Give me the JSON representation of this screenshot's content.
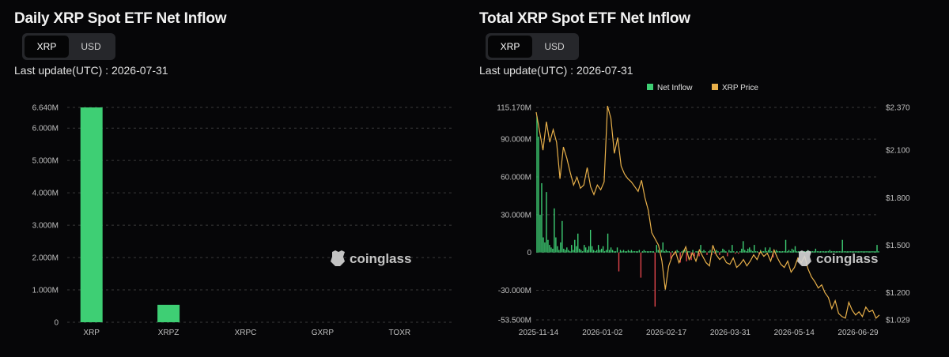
{
  "left": {
    "title": "Daily XRP Spot ETF Net Inflow",
    "toggle": [
      "XRP",
      "USD"
    ],
    "last_update": "Last update(UTC) : 2026-07-31"
  },
  "right": {
    "title": "Total XRP Spot ETF Net Inflow",
    "toggle": [
      "XRP",
      "USD"
    ],
    "last_update": "Last update(UTC) : 2026-07-31"
  },
  "watermark": "coinglass",
  "colors": {
    "inflow": "#3ecf74",
    "outflow": "#e2454b",
    "price": "#e8b04a",
    "grid": "#3a3a3a"
  },
  "chart_data": [
    {
      "type": "bar",
      "categories": [
        "XRP",
        "XRPZ",
        "XRPC",
        "GXRP",
        "TOXR"
      ],
      "values": [
        6640000,
        540000,
        0,
        0,
        0
      ],
      "ylim": [
        0,
        6640000
      ],
      "y_ticks": [
        "0",
        "1.000M",
        "2.000M",
        "3.000M",
        "4.000M",
        "5.000M",
        "6.000M",
        "6.640M"
      ],
      "grid": true
    },
    {
      "type": "bar+line",
      "legend": [
        "Net Inflow",
        "XRP Price"
      ],
      "legend_position": "top-center",
      "ylim": [
        -53500000,
        115170000
      ],
      "y_ticks": [
        "-53.500M",
        "-30.000M",
        "0",
        "30.000M",
        "60.000M",
        "90.000M",
        "115.170M"
      ],
      "y2lim": [
        1.029,
        2.37
      ],
      "y2_ticks": [
        "$1.029",
        "$1.200",
        "$1.500",
        "$1.800",
        "$2.100",
        "$2.370"
      ],
      "x_ticks": [
        "2025-11-14",
        "2026-01-02",
        "2026-02-17",
        "2026-03-31",
        "2026-05-14",
        "2026-06-29"
      ],
      "series": [
        {
          "name": "Net Inflow",
          "values_M": [
            108,
            92,
            30,
            55,
            12,
            8,
            48,
            10,
            6,
            4,
            3,
            35,
            12,
            5,
            2,
            8,
            25,
            3,
            2,
            4,
            2,
            1,
            6,
            2,
            10,
            5,
            15,
            3,
            2,
            1,
            6,
            4,
            2,
            5,
            18,
            5,
            2,
            1,
            2,
            6,
            2,
            3,
            5,
            1,
            2,
            15,
            2,
            4,
            2,
            1,
            1,
            4,
            -15,
            2,
            1,
            2,
            1,
            1,
            2,
            1,
            2,
            1,
            1,
            1,
            1,
            2,
            -20,
            1,
            2,
            1,
            1,
            1,
            1,
            1,
            1,
            -43,
            6,
            2,
            1,
            2,
            8,
            1,
            2,
            1,
            1,
            -5,
            1,
            -2,
            1,
            2,
            1,
            -8,
            1,
            2,
            2,
            -7,
            1,
            1,
            -6,
            2,
            -3,
            1,
            1,
            -3,
            6,
            1,
            2,
            1,
            -2,
            1,
            2,
            -2,
            1,
            -1,
            2,
            1,
            -2,
            1,
            3,
            2,
            1,
            -3,
            2,
            1,
            6,
            1,
            -1,
            1,
            -1,
            1,
            3,
            9,
            2,
            1,
            3,
            4,
            2,
            1,
            6,
            1,
            1,
            -1,
            2,
            1,
            1,
            4,
            1,
            2,
            4,
            1,
            -4,
            1,
            2,
            1,
            1,
            1,
            1,
            1,
            10,
            1,
            2,
            1,
            3,
            2,
            5,
            1,
            1,
            1,
            1,
            1,
            1,
            1,
            2,
            1,
            1,
            1,
            1,
            3,
            1,
            1,
            1,
            1,
            1,
            1,
            1,
            1,
            2,
            1,
            1,
            1,
            1,
            1,
            1,
            1,
            10,
            1,
            1,
            1,
            1,
            1,
            1,
            1,
            1,
            1,
            1,
            1,
            1,
            1,
            1,
            1,
            1,
            1,
            1,
            1,
            1,
            1,
            6,
            1
          ]
        },
        {
          "name": "XRP Price",
          "values": [
            2.34,
            2.22,
            2.1,
            2.28,
            2.15,
            2.23,
            2.15,
            1.92,
            2.12,
            2.05,
            1.96,
            1.88,
            1.93,
            1.86,
            1.88,
            1.99,
            1.87,
            1.82,
            1.88,
            1.85,
            1.9,
            2.38,
            2.3,
            2.08,
            2.18,
            2.0,
            1.95,
            1.92,
            1.9,
            1.87,
            1.84,
            1.91,
            1.8,
            1.72,
            1.58,
            1.54,
            1.5,
            1.4,
            1.22,
            1.37,
            1.43,
            1.46,
            1.39,
            1.44,
            1.49,
            1.41,
            1.45,
            1.4,
            1.47,
            1.43,
            1.39,
            1.37,
            1.5,
            1.44,
            1.41,
            1.43,
            1.39,
            1.38,
            1.42,
            1.36,
            1.38,
            1.41,
            1.37,
            1.4,
            1.44,
            1.41,
            1.46,
            1.43,
            1.45,
            1.4,
            1.47,
            1.42,
            1.38,
            1.36,
            1.4,
            1.33,
            1.36,
            1.42,
            1.39,
            1.43,
            1.35,
            1.3,
            1.27,
            1.23,
            1.25,
            1.2,
            1.17,
            1.1,
            1.15,
            1.07,
            1.05,
            1.04,
            1.14,
            1.09,
            1.06,
            1.08,
            1.05,
            1.11,
            1.08,
            1.09,
            1.04,
            1.06
          ]
        }
      ],
      "grid": true
    }
  ]
}
